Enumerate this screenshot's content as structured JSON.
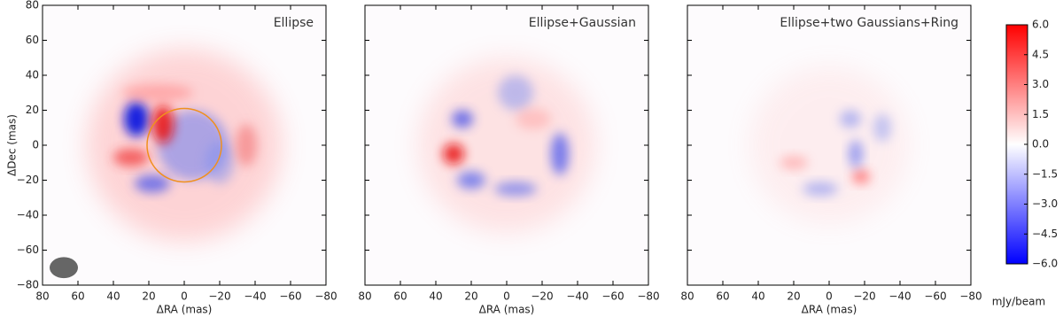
{
  "chart_data": [
    {
      "type": "image",
      "title": "Ellipse",
      "xlabel": "ΔRA (mas)",
      "ylabel": "ΔDec (mas)",
      "xlim": [
        80,
        -80
      ],
      "ylim": [
        -80,
        80
      ],
      "xticks": [
        80,
        60,
        40,
        20,
        0,
        {
          "value": -20,
          "label": "−20"
        },
        {
          "value": -40,
          "label": "−40"
        },
        {
          "value": -60,
          "label": "−60"
        },
        {
          "value": -80,
          "label": "−80"
        }
      ],
      "yticks": [
        {
          "value": -80,
          "label": "−80"
        },
        {
          "value": -60,
          "label": "−60"
        },
        {
          "value": -40,
          "label": "−40"
        },
        {
          "value": -20,
          "label": "−20"
        },
        0,
        20,
        40,
        60,
        80
      ],
      "model_ellipse": {
        "cx": 0,
        "cy": 0,
        "r": 21,
        "color": "#f0901e"
      },
      "beam": {
        "cx": 68,
        "cy": -70,
        "rx": 8,
        "ry": 6,
        "color": "#666666"
      }
    },
    {
      "type": "image",
      "title": "Ellipse+Gaussian",
      "xlabel": "ΔRA (mas)",
      "xlim": [
        80,
        -80
      ],
      "ylim": [
        -80,
        80
      ],
      "xticks": [
        80,
        60,
        40,
        20,
        0,
        {
          "value": -20,
          "label": "−20"
        },
        {
          "value": -40,
          "label": "−40"
        },
        {
          "value": -60,
          "label": "−60"
        },
        {
          "value": -80,
          "label": "−80"
        }
      ],
      "yticks": [
        -80,
        -60,
        -40,
        -20,
        0,
        20,
        40,
        60,
        80
      ]
    },
    {
      "type": "image",
      "title": "Ellipse+two Gaussians+Ring",
      "xlabel": "ΔRA (mas)",
      "xlim": [
        80,
        -80
      ],
      "ylim": [
        -80,
        80
      ],
      "xticks": [
        80,
        60,
        40,
        20,
        0,
        {
          "value": -20,
          "label": "−20"
        },
        {
          "value": -40,
          "label": "−40"
        },
        {
          "value": -60,
          "label": "−60"
        },
        {
          "value": -80,
          "label": "−80"
        }
      ],
      "yticks": [
        -80,
        -60,
        -40,
        -20,
        0,
        20,
        40,
        60,
        80
      ]
    },
    {
      "type": "colorbar",
      "label": "mJy/beam",
      "clim": [
        -6,
        6
      ],
      "colors": [
        "#0000ff",
        "#ffffff",
        "#ff0000"
      ],
      "ticks": [
        {
          "value": 6,
          "label": "6.0"
        },
        {
          "value": 4.5,
          "label": "4.5"
        },
        {
          "value": 3,
          "label": "3.0"
        },
        {
          "value": 1.5,
          "label": "1.5"
        },
        {
          "value": 0,
          "label": "0.0"
        },
        {
          "value": -1.5,
          "label": "−1.5"
        },
        {
          "value": -3,
          "label": "−3.0"
        },
        {
          "value": -4.5,
          "label": "−4.5"
        },
        {
          "value": -6,
          "label": "−6.0"
        }
      ]
    }
  ]
}
